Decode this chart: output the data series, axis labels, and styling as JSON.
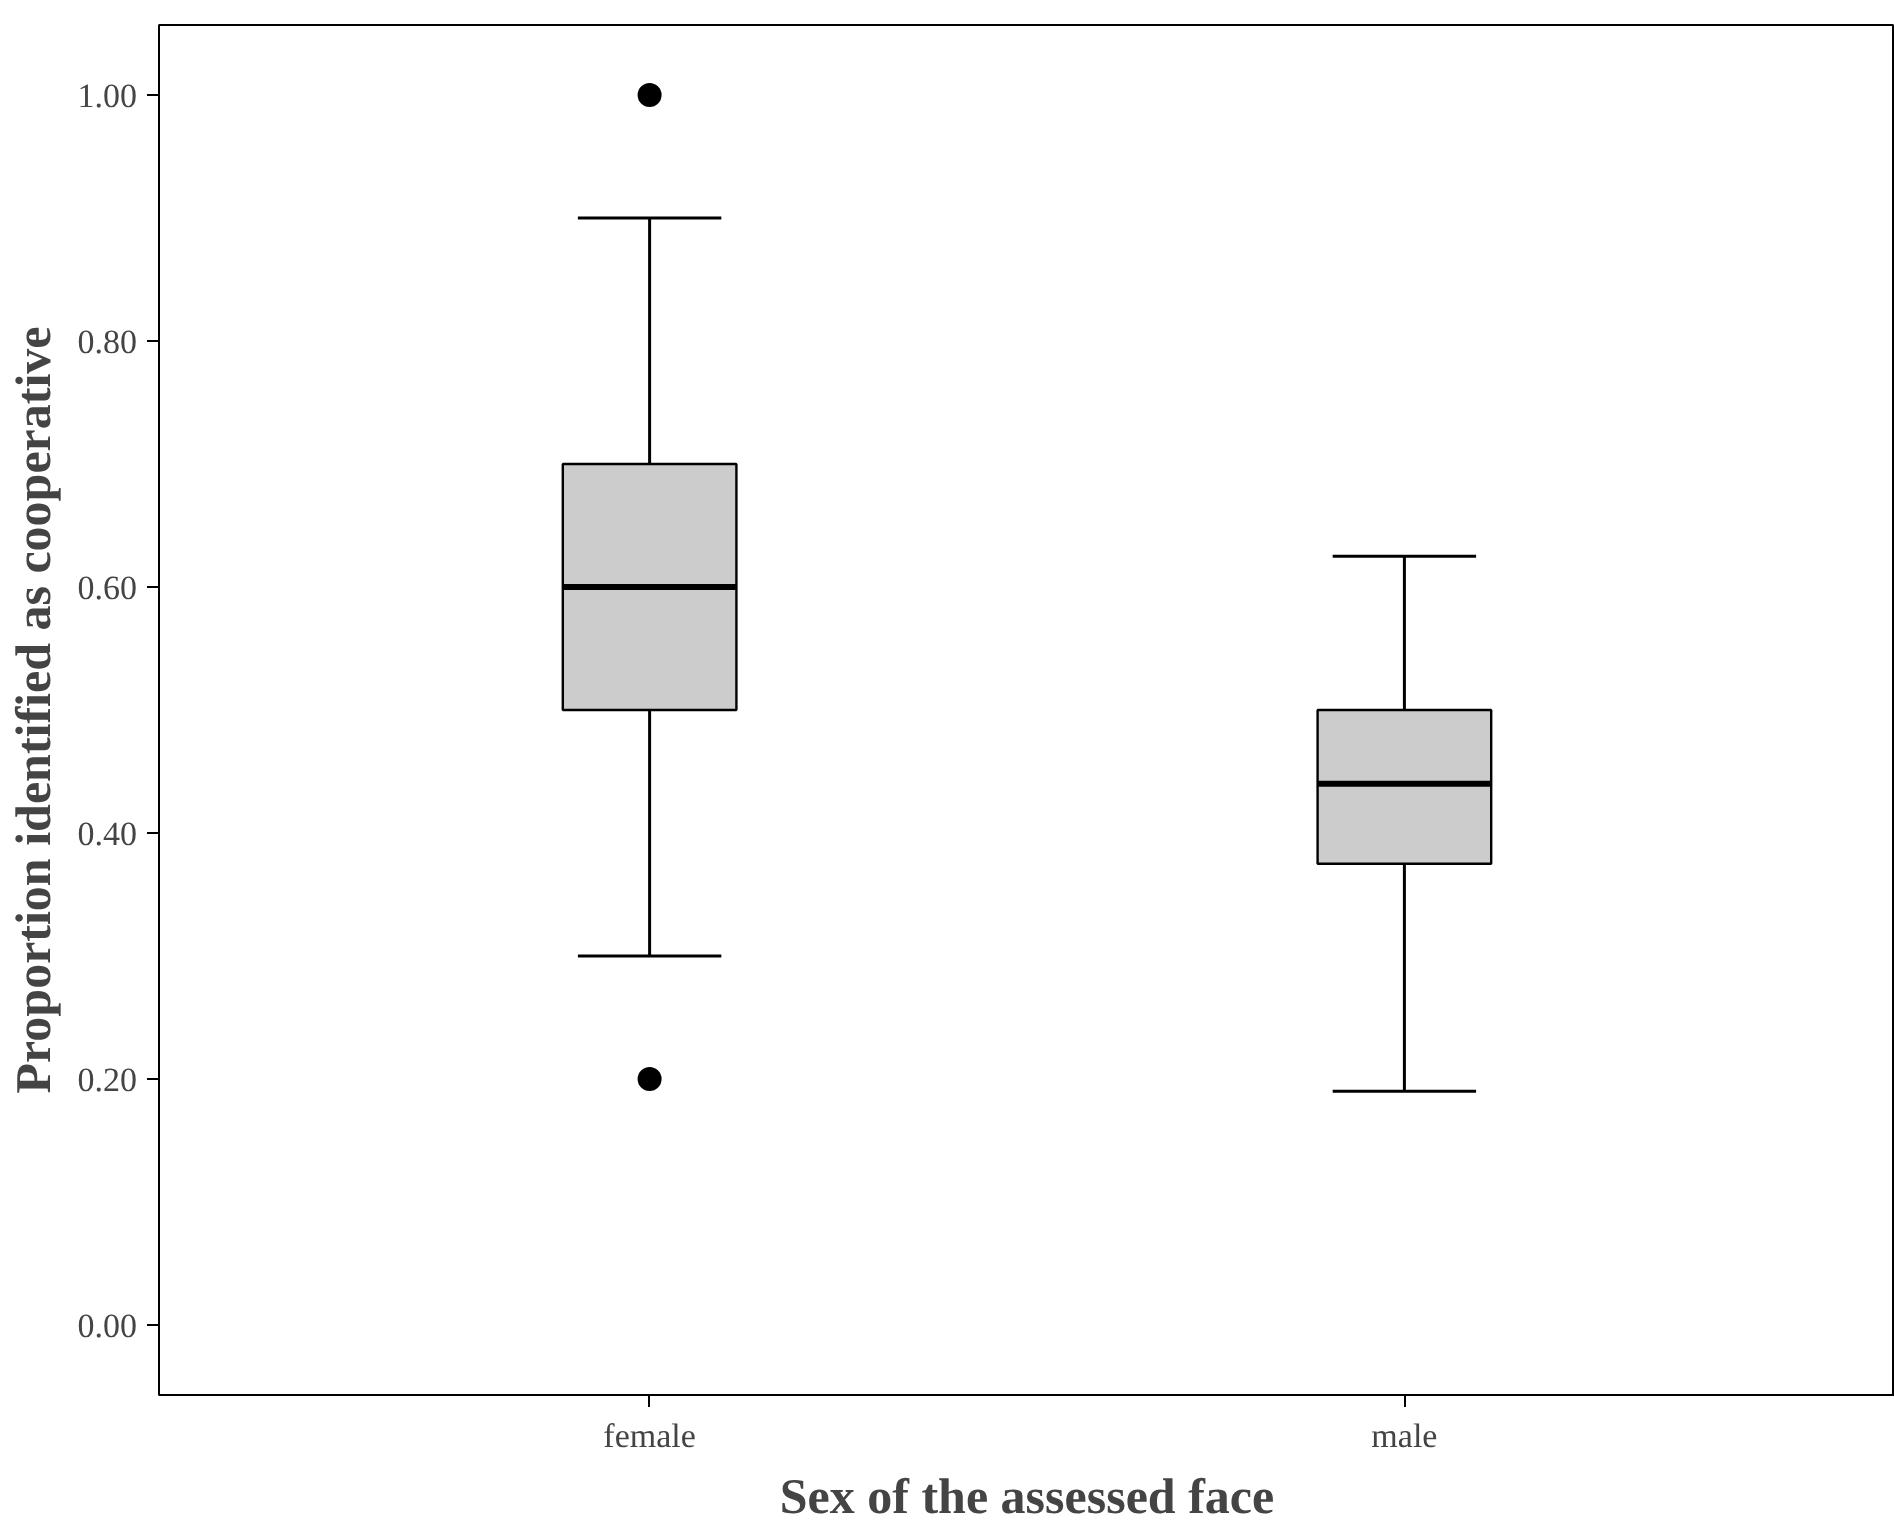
{
  "chart_data": {
    "type": "box",
    "xlabel": "Sex of the assessed face",
    "ylabel": "Proportion identified as cooperative",
    "categories": [
      "female",
      "male"
    ],
    "series": [
      {
        "color": "#cccccc",
        "boxes": [
          {
            "low": 0.3,
            "q1": 0.5,
            "median": 0.6,
            "q3": 0.7,
            "high": 0.9,
            "outliers": [
              1.0,
              0.2
            ]
          },
          {
            "low": 0.19,
            "q1": 0.375,
            "median": 0.44,
            "q3": 0.5,
            "high": 0.625
          }
        ]
      }
    ],
    "ylim": [
      -0.057,
      1.057
    ],
    "yticks": [
      {
        "value": 0,
        "label": "0.00"
      },
      {
        "value": 0.2,
        "label": "0.20"
      },
      {
        "value": 0.4,
        "label": "0.40"
      },
      {
        "value": 0.6,
        "label": "0.60"
      },
      {
        "value": 0.8,
        "label": "0.80"
      },
      {
        "value": 1.0,
        "label": "1.00"
      }
    ],
    "marker": "circle"
  }
}
